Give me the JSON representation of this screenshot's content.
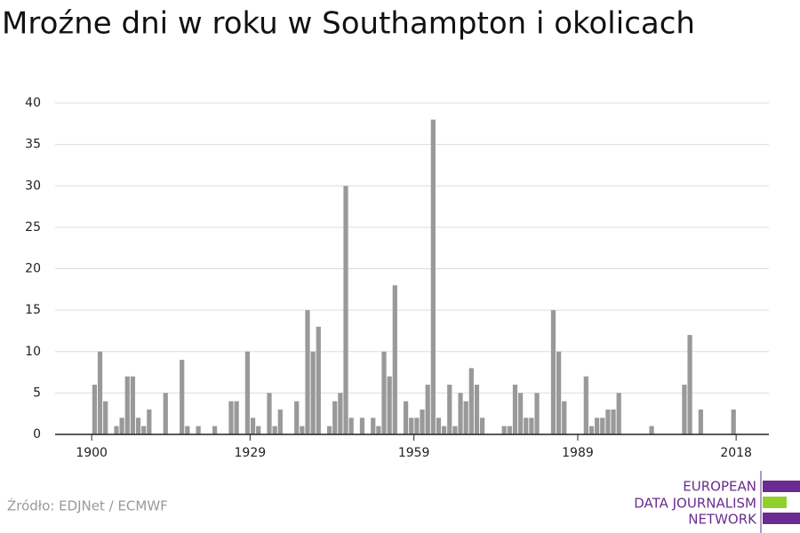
{
  "chart_data": {
    "type": "bar",
    "title": "Mroźne dni w roku w Southampton i okolicach",
    "x": [
      1900,
      1901,
      1902,
      1904,
      1905,
      1906,
      1907,
      1908,
      1909,
      1910,
      1913,
      1916,
      1917,
      1919,
      1922,
      1925,
      1926,
      1928,
      1929,
      1930,
      1932,
      1933,
      1934,
      1937,
      1938,
      1939,
      1940,
      1941,
      1943,
      1944,
      1945,
      1946,
      1947,
      1949,
      1951,
      1952,
      1953,
      1954,
      1955,
      1957,
      1958,
      1959,
      1960,
      1961,
      1962,
      1963,
      1964,
      1965,
      1966,
      1967,
      1968,
      1969,
      1970,
      1971,
      1975,
      1976,
      1977,
      1978,
      1979,
      1980,
      1981,
      1984,
      1985,
      1986,
      1990,
      1991,
      1992,
      1993,
      1994,
      1995,
      1996,
      2002,
      2008,
      2009,
      2011,
      2017
    ],
    "values": [
      6,
      10,
      4,
      1,
      2,
      7,
      7,
      2,
      1,
      3,
      5,
      9,
      1,
      1,
      1,
      4,
      4,
      10,
      2,
      1,
      5,
      1,
      3,
      4,
      1,
      15,
      10,
      13,
      1,
      4,
      5,
      30,
      2,
      2,
      2,
      1,
      10,
      7,
      18,
      4,
      2,
      2,
      3,
      6,
      38,
      2,
      1,
      6,
      1,
      5,
      4,
      8,
      6,
      2,
      1,
      1,
      6,
      5,
      2,
      2,
      5,
      15,
      10,
      4,
      7,
      1,
      2,
      2,
      3,
      3,
      5,
      1,
      6,
      12,
      3,
      3
    ],
    "color": "#999999",
    "xlim": [
      1893.3,
      2024
    ],
    "xticks": [
      1900,
      1929,
      1959,
      1989,
      2018
    ],
    "ylim": [
      0,
      40
    ],
    "yticks": [
      0,
      5,
      10,
      15,
      20,
      25,
      30,
      35,
      40
    ],
    "grid": true
  },
  "source": "Źródło: EDJNet / ECMWF",
  "logo": [
    "EUROPEAN",
    "DATA JOURNALISM",
    "NETWORK"
  ]
}
